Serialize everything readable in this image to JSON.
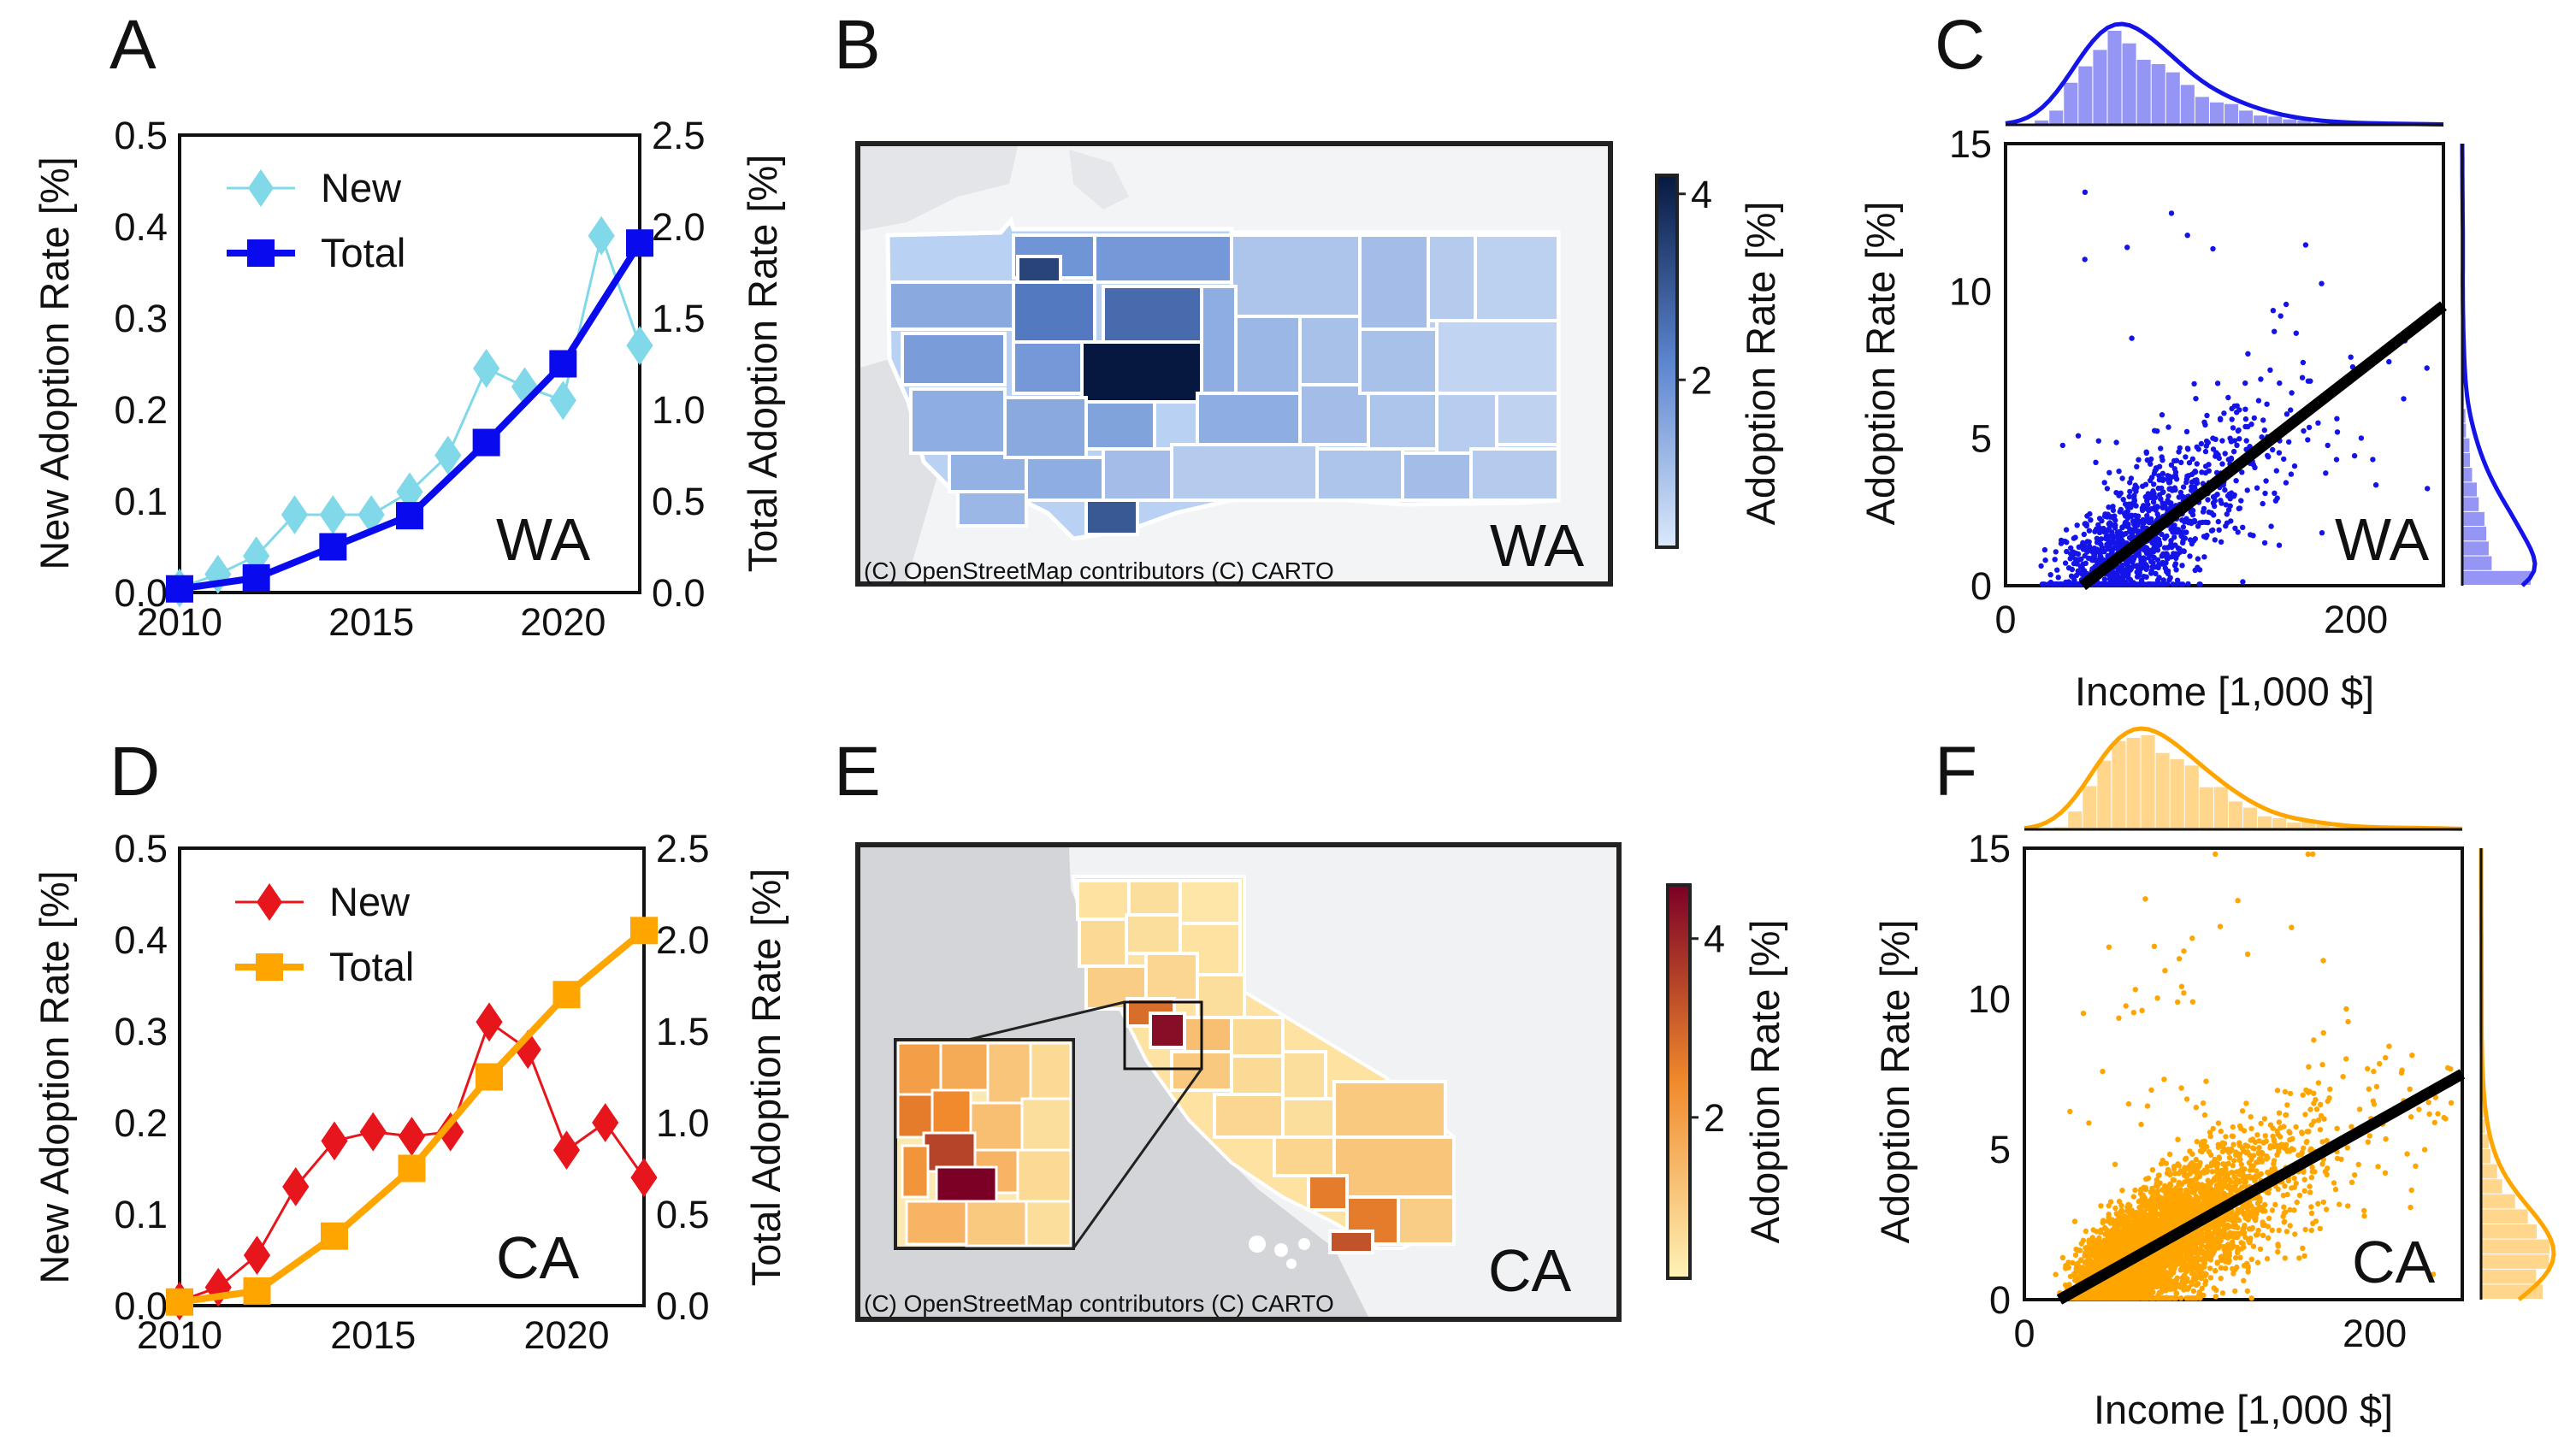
{
  "panels": {
    "A": {
      "letter": "A",
      "state": "WA"
    },
    "B": {
      "letter": "B",
      "state": "WA",
      "credit": "(C) OpenStreetMap contributors (C) CARTO"
    },
    "C": {
      "letter": "C",
      "state": "WA"
    },
    "D": {
      "letter": "D",
      "state": "CA"
    },
    "E": {
      "letter": "E",
      "state": "CA",
      "credit": "(C) OpenStreetMap contributors (C) CARTO"
    },
    "F": {
      "letter": "F",
      "state": "CA"
    }
  },
  "colors": {
    "wa_new": "#80d8e8",
    "wa_total": "#0a0aee",
    "ca_new": "#e6161c",
    "ca_total": "#ffa500",
    "wa_map_low": "#dbe9fb",
    "wa_map_high": "#06183f",
    "ca_map_low": "#fff3b8",
    "ca_map_high": "#7a0026",
    "scatter_wa": "#1414e8",
    "scatter_ca": "#ffa500",
    "fit": "#000000"
  },
  "chart_data": [
    {
      "panel": "A",
      "type": "line",
      "xlim": [
        2010,
        2022
      ],
      "xticks": [
        "2010",
        "2015",
        "2020"
      ],
      "ylabel_left": "New Adoption Rate [%]",
      "ylabel_right": "Total Adoption Rate [%]",
      "ylim_left": [
        0,
        0.5
      ],
      "ylim_right": [
        0,
        2.5
      ],
      "yticks_left": [
        "0.0",
        "0.1",
        "0.2",
        "0.3",
        "0.4",
        "0.5"
      ],
      "yticks_right": [
        "0.0",
        "0.5",
        "1.0",
        "1.5",
        "2.0",
        "2.5"
      ],
      "legend_position": "top-left",
      "series": [
        {
          "name": "New",
          "axis": "left",
          "marker": "diamond",
          "x": [
            2010,
            2011,
            2012,
            2013,
            2014,
            2015,
            2016,
            2017,
            2018,
            2019,
            2020,
            2021,
            2022
          ],
          "values": [
            0.005,
            0.02,
            0.04,
            0.085,
            0.085,
            0.085,
            0.11,
            0.15,
            0.245,
            0.225,
            0.21,
            0.39,
            0.27
          ]
        },
        {
          "name": "Total",
          "axis": "right",
          "marker": "square",
          "x": [
            2010,
            2012,
            2014,
            2016,
            2018,
            2020,
            2022
          ],
          "values": [
            0.02,
            0.08,
            0.25,
            0.42,
            0.82,
            1.25,
            1.91
          ]
        }
      ]
    },
    {
      "panel": "B",
      "type": "choropleth",
      "region": "WA",
      "colorbar_label": "Adoption Rate [%]",
      "colorbar_ticks": [
        "2",
        "4"
      ],
      "colorbar_range": [
        0.2,
        4.2
      ]
    },
    {
      "panel": "C",
      "type": "scatter",
      "xlabel": "Income [1,000 $]",
      "ylabel": "Adoption Rate [%]",
      "xlim": [
        0,
        250
      ],
      "ylim": [
        0,
        15
      ],
      "xticks": [
        "0",
        "200"
      ],
      "yticks": [
        "0",
        "5",
        "10",
        "15"
      ],
      "fit_line": {
        "x": [
          44,
          250
        ],
        "y": [
          0,
          9.5
        ]
      },
      "marginals": "kde + histogram (top: income, right: adoption rate)"
    },
    {
      "panel": "D",
      "type": "line",
      "xlim": [
        2010,
        2022
      ],
      "xticks": [
        "2010",
        "2015",
        "2020"
      ],
      "ylabel_left": "New Adoption Rate [%]",
      "ylabel_right": "Total Adoption Rate [%]",
      "ylim_left": [
        0,
        0.5
      ],
      "ylim_right": [
        0,
        2.5
      ],
      "yticks_left": [
        "0.0",
        "0.1",
        "0.2",
        "0.3",
        "0.4",
        "0.5"
      ],
      "yticks_right": [
        "0.0",
        "0.5",
        "1.0",
        "1.5",
        "2.0",
        "2.5"
      ],
      "legend_position": "top-left",
      "series": [
        {
          "name": "New",
          "axis": "left",
          "marker": "diamond",
          "x": [
            2010,
            2011,
            2012,
            2013,
            2014,
            2015,
            2016,
            2017,
            2018,
            2019,
            2020,
            2021,
            2022
          ],
          "values": [
            0.005,
            0.02,
            0.055,
            0.13,
            0.18,
            0.19,
            0.185,
            0.19,
            0.31,
            0.28,
            0.17,
            0.2,
            0.14
          ]
        },
        {
          "name": "Total",
          "axis": "right",
          "marker": "square",
          "x": [
            2010,
            2012,
            2014,
            2016,
            2018,
            2020,
            2022
          ],
          "values": [
            0.02,
            0.08,
            0.38,
            0.75,
            1.25,
            1.7,
            2.05
          ]
        }
      ]
    },
    {
      "panel": "E",
      "type": "choropleth",
      "region": "CA",
      "colorbar_label": "Adoption Rate [%]",
      "colorbar_ticks": [
        "2",
        "4"
      ],
      "colorbar_range": [
        0.2,
        4.6
      ]
    },
    {
      "panel": "F",
      "type": "scatter",
      "xlabel": "Income [1,000 $]",
      "ylabel": "Adoption Rate [%]",
      "xlim": [
        0,
        250
      ],
      "ylim": [
        0,
        15
      ],
      "xticks": [
        "0",
        "200"
      ],
      "yticks": [
        "0",
        "5",
        "10",
        "15"
      ],
      "fit_line": {
        "x": [
          20,
          250
        ],
        "y": [
          0,
          7.5
        ]
      },
      "marginals": "kde + histogram (top: income, right: adoption rate)"
    }
  ]
}
